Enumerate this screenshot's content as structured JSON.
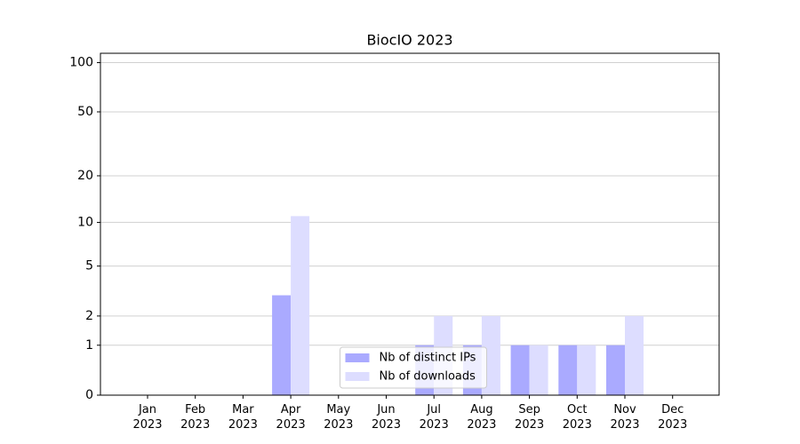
{
  "chart_data": {
    "type": "bar",
    "title": "BiocIO 2023",
    "categories": [
      "Jan 2023",
      "Feb 2023",
      "Mar 2023",
      "Apr 2023",
      "May 2023",
      "Jun 2023",
      "Jul 2023",
      "Aug 2023",
      "Sep 2023",
      "Oct 2023",
      "Nov 2023",
      "Dec 2023"
    ],
    "series": [
      {
        "name": "Nb of distinct IPs",
        "color": "#aaaaff",
        "values": [
          0,
          0,
          0,
          3,
          0,
          0,
          1,
          1,
          1,
          1,
          1,
          0
        ]
      },
      {
        "name": "Nb of downloads",
        "color": "#ddddff",
        "values": [
          0,
          0,
          0,
          11,
          0,
          0,
          2,
          2,
          1,
          1,
          2,
          0
        ]
      }
    ],
    "yscale": "log1p",
    "ylim": [
      0,
      114
    ],
    "yticks": [
      0,
      1,
      2,
      5,
      10,
      20,
      50,
      100
    ],
    "grid": true,
    "legend": "lower center"
  }
}
